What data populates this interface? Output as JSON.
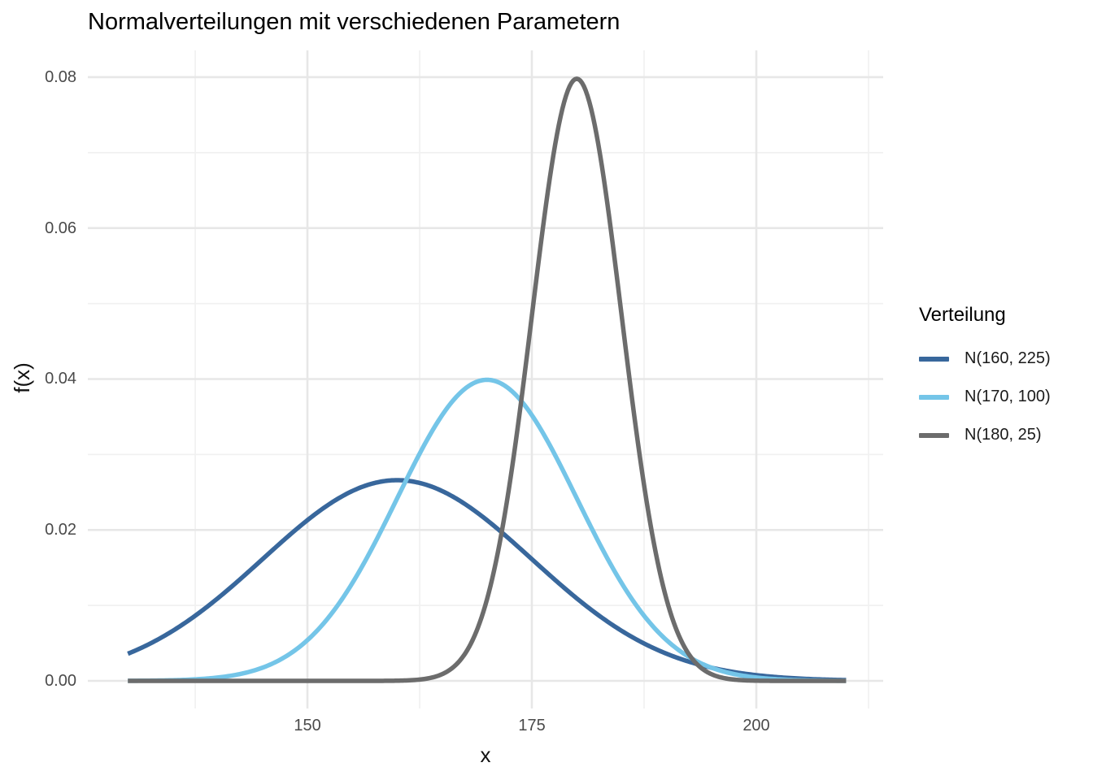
{
  "chart_data": {
    "type": "line",
    "title": "Normalverteilungen mit verschiedenen Parametern",
    "xlabel": "x",
    "ylabel": "f(x)",
    "legend_title": "Verteilung",
    "legend_position": "right",
    "grid": "major and minor, light gray on white (theme_minimal)",
    "xlim": [
      130,
      210
    ],
    "ylim": [
      0,
      0.08
    ],
    "panel_xlim": [
      125.54,
      214.13
    ],
    "panel_ylim": [
      -0.00366,
      0.08355
    ],
    "x_ticks": [
      150,
      175,
      200
    ],
    "x_tick_labels": [
      "150",
      "175",
      "200"
    ],
    "x_minor_ticks": [
      137.5,
      162.5,
      187.5,
      212.5
    ],
    "y_ticks": [
      0,
      0.02,
      0.04,
      0.06,
      0.08
    ],
    "y_tick_labels": [
      "0.00",
      "0.02",
      "0.04",
      "0.06",
      "0.08"
    ],
    "y_minor_ticks": [
      0.01,
      0.03,
      0.05,
      0.07
    ],
    "grid_major_color": "#e7e7e7",
    "grid_minor_color": "#f1f1f1",
    "curve_stroke_width": 5.5,
    "x_samples": [
      130,
      135,
      140,
      145,
      150,
      155,
      160,
      165,
      170,
      175,
      180,
      185,
      190,
      195,
      200,
      205,
      210
    ],
    "series": [
      {
        "name": "N(160, 225)",
        "distribution": "normal-pdf",
        "mean": 160,
        "variance": 225,
        "sd": 15,
        "peak_x": 160,
        "peak_y": 0.0266,
        "color": "#38679C",
        "y_samples": [
          0.0036,
          0.006632,
          0.010934,
          0.016131,
          0.021296,
          0.025159,
          0.026596,
          0.025159,
          0.021296,
          0.016131,
          0.010934,
          0.006632,
          0.0036,
          0.001748,
          0.00076,
          0.000295,
          0.000103
        ]
      },
      {
        "name": "N(170, 100)",
        "distribution": "normal-pdf",
        "mean": 170,
        "variance": 100,
        "sd": 10,
        "peak_x": 170,
        "peak_y": 0.0399,
        "color": "#74C5E8",
        "y_samples": [
          1.3e-05,
          8.7e-05,
          0.000443,
          0.001753,
          0.005399,
          0.012952,
          0.024197,
          0.035207,
          0.039894,
          0.035207,
          0.024197,
          0.012952,
          0.005399,
          0.001753,
          0.000443,
          8.7e-05,
          1.3e-05
        ]
      },
      {
        "name": "N(180, 25)",
        "distribution": "normal-pdf",
        "mean": 180,
        "variance": 25,
        "sd": 5,
        "peak_x": 180,
        "peak_y": 0.0798,
        "color": "#6C6C6C",
        "y_samples": [
          0,
          0,
          0,
          0,
          0,
          3e-07,
          2.67e-05,
          0.000886,
          0.010798,
          0.048394,
          0.079788,
          0.048394,
          0.010798,
          0.000886,
          2.67e-05,
          3e-07,
          0
        ]
      }
    ]
  }
}
